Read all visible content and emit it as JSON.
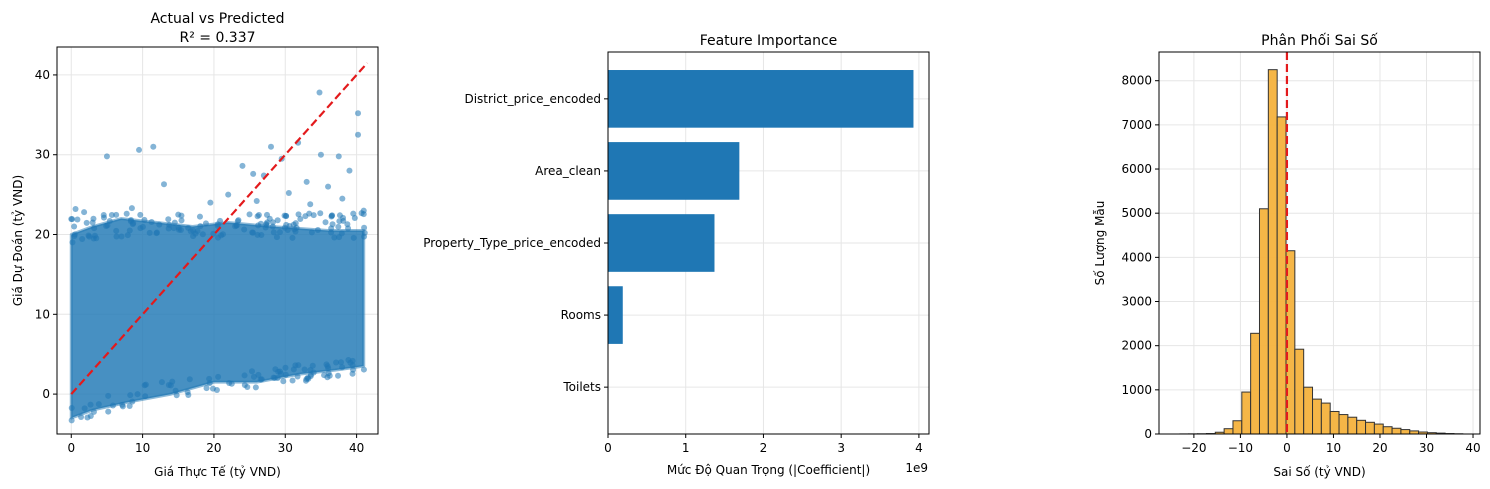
{
  "colors": {
    "blue": "#1f77b4",
    "red": "#e31a1c",
    "orange": "#f4b23d",
    "grid": "#e6e6e6"
  },
  "chart_data": [
    {
      "type": "scatter",
      "title": "Actual vs Predicted",
      "subtitle": "R² = 0.337",
      "xlabel": "Giá Thực Tế (tỷ VND)",
      "ylabel": "Giá Dự Đoán (tỷ VND)",
      "xlim": [
        -2,
        43
      ],
      "ylim": [
        -5,
        43.5
      ],
      "xticks": [
        0,
        10,
        20,
        30,
        40
      ],
      "yticks": [
        0,
        10,
        20,
        30,
        40
      ],
      "grid": true,
      "reference_line": {
        "x": [
          0,
          41.5
        ],
        "y": [
          0,
          41.5
        ],
        "style": "dashed"
      },
      "outliers": [
        {
          "x": 5,
          "y": 29.8
        },
        {
          "x": 9.5,
          "y": 30.6
        },
        {
          "x": 11.5,
          "y": 31
        },
        {
          "x": 13,
          "y": 26.3
        },
        {
          "x": 1.8,
          "y": 22.8
        },
        {
          "x": 8.5,
          "y": 23.3
        },
        {
          "x": 24,
          "y": 28.6
        },
        {
          "x": 25.5,
          "y": 27.6
        },
        {
          "x": 28,
          "y": 31
        },
        {
          "x": 29.5,
          "y": 29.5
        },
        {
          "x": 31.8,
          "y": 31.5
        },
        {
          "x": 34.8,
          "y": 37.8
        },
        {
          "x": 35,
          "y": 30
        },
        {
          "x": 40.2,
          "y": 35.2
        },
        {
          "x": 40.2,
          "y": 32.5
        },
        {
          "x": 37.5,
          "y": 29.8
        },
        {
          "x": 39,
          "y": 28
        },
        {
          "x": 33,
          "y": 26.6
        },
        {
          "x": 27,
          "y": 27.4
        },
        {
          "x": 30.5,
          "y": 25.2
        },
        {
          "x": 22,
          "y": 25
        },
        {
          "x": 19.5,
          "y": 24
        },
        {
          "x": 36,
          "y": 26
        },
        {
          "x": 38,
          "y": 24.5
        },
        {
          "x": 0.4,
          "y": 21
        },
        {
          "x": 0.5,
          "y": 20
        },
        {
          "x": 3,
          "y": 21.5
        },
        {
          "x": 41,
          "y": 23
        },
        {
          "x": 15,
          "y": 22.5
        },
        {
          "x": 26,
          "y": 24.2
        },
        {
          "x": 33.5,
          "y": 23.8
        },
        {
          "x": 0.6,
          "y": 23.2
        }
      ]
    },
    {
      "type": "bar",
      "orientation": "horizontal",
      "title": "Feature Importance",
      "xlabel": "Mức Độ Quan Trọng (|Coefficient|)",
      "x_offset_label": "1e9",
      "categories": [
        "District_price_encoded",
        "Area_clean",
        "Property_Type_price_encoded",
        "Rooms",
        "Toilets"
      ],
      "values": [
        3.93,
        1.69,
        1.37,
        0.19,
        0.0
      ],
      "xlim": [
        0,
        4.13
      ],
      "xticks": [
        0,
        1,
        2,
        3,
        4
      ],
      "grid": true
    },
    {
      "type": "bar",
      "subtype": "histogram",
      "title": "Phân Phối Sai Số",
      "xlabel": "Sai Số (tỷ VND)",
      "ylabel": "Số Lượng Mẫu",
      "bin_edges": [
        -23.0,
        -21.1,
        -19.2,
        -17.3,
        -15.4,
        -13.5,
        -11.6,
        -9.7,
        -7.8,
        -5.9,
        -4.0,
        -2.1,
        -0.2,
        1.7,
        3.6,
        5.5,
        7.4,
        9.3,
        11.2,
        13.1,
        15.0,
        16.9,
        18.8,
        20.7,
        22.6,
        24.5,
        26.4,
        28.3,
        30.2,
        32.1,
        34.0,
        35.9,
        37.8
      ],
      "counts": [
        2,
        3,
        5,
        10,
        40,
        120,
        300,
        950,
        2280,
        5100,
        8250,
        7180,
        4150,
        1920,
        1060,
        790,
        700,
        510,
        440,
        380,
        310,
        265,
        225,
        165,
        130,
        100,
        70,
        45,
        30,
        20,
        10,
        5
      ],
      "vertical_line": 0,
      "xlim": [
        -27.5,
        41.5
      ],
      "ylim": [
        0,
        8650
      ],
      "xticks": [
        -20,
        -10,
        0,
        10,
        20,
        30,
        40
      ],
      "yticks": [
        0,
        1000,
        2000,
        3000,
        4000,
        5000,
        6000,
        7000,
        8000
      ],
      "grid": true
    }
  ]
}
